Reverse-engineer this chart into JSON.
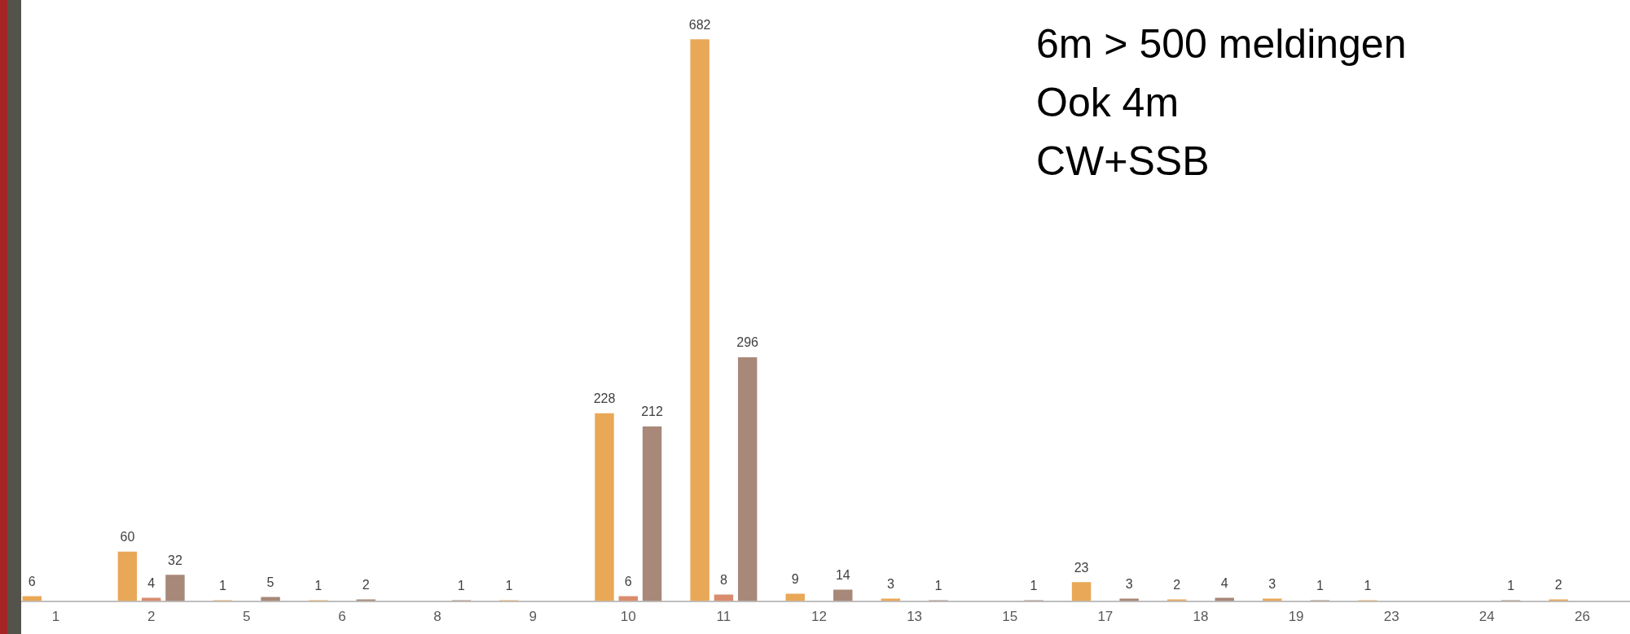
{
  "chart_data": {
    "type": "bar",
    "categories": [
      "1",
      "2",
      "5",
      "6",
      "8",
      "9",
      "10",
      "11",
      "12",
      "13",
      "15",
      "17",
      "18",
      "19",
      "23",
      "24",
      "26"
    ],
    "series": [
      {
        "color": "#e9a857",
        "values": [
          6,
          60,
          1,
          1,
          null,
          1,
          228,
          682,
          9,
          3,
          null,
          23,
          2,
          3,
          1,
          null,
          2
        ]
      },
      {
        "color": "#d98c6e",
        "values": [
          null,
          4,
          null,
          null,
          null,
          null,
          6,
          8,
          null,
          null,
          null,
          null,
          null,
          null,
          null,
          null,
          null
        ]
      },
      {
        "color": "#a88878",
        "values": [
          null,
          32,
          5,
          2,
          1,
          null,
          212,
          296,
          14,
          1,
          1,
          3,
          4,
          1,
          null,
          1,
          null
        ]
      }
    ],
    "data_labels": true,
    "legend": false,
    "grid": false,
    "tick_labels": "x",
    "annotations": [
      "6m > 500 meldingen",
      "Ook 4m",
      "CW+SSB"
    ]
  }
}
